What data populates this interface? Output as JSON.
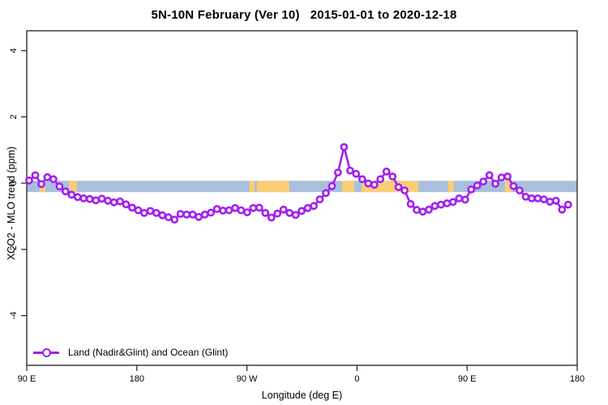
{
  "chart_data": {
    "type": "line",
    "title": "5N-10N February (Ver 10)   2015-01-01 to 2020-12-18",
    "xlabel": "Longitude (deg E)",
    "ylabel": "XCO2 - MLO trend (ppm)",
    "xlim": [
      90,
      540
    ],
    "ylim": [
      -5.5,
      4.6
    ],
    "grid": false,
    "x_ticks": [
      {
        "value": 90,
        "label": "90 E"
      },
      {
        "value": 180,
        "label": "180"
      },
      {
        "value": 270,
        "label": "90 W"
      },
      {
        "value": 360,
        "label": "0"
      },
      {
        "value": 450,
        "label": "90 E"
      },
      {
        "value": 540,
        "label": "180"
      }
    ],
    "y_ticks": [
      {
        "value": -4,
        "label": "-4"
      },
      {
        "value": -2,
        "label": "-2"
      },
      {
        "value": 0,
        "label": "0"
      },
      {
        "value": 2,
        "label": "2"
      },
      {
        "value": 4,
        "label": "4"
      }
    ],
    "axis_color": "#2f2f2f",
    "text_color": "#000000",
    "legend": {
      "position": "bottom-left",
      "entries": [
        {
          "label": "Land (Nadir&Glint) and Ocean (Glint)",
          "color": "#a020f0",
          "marker": "open-circle"
        }
      ]
    },
    "series": [
      {
        "name": "Land (Nadir&Glint) and Ocean (Glint)",
        "color": "#a020f0",
        "marker": "open-circle",
        "marker_fill": "#ffffff",
        "x_start": 92,
        "x_step": 4.95,
        "values": [
          0.08,
          0.24,
          -0.03,
          0.18,
          0.12,
          -0.1,
          -0.25,
          -0.35,
          -0.42,
          -0.46,
          -0.48,
          -0.52,
          -0.47,
          -0.53,
          -0.58,
          -0.55,
          -0.64,
          -0.74,
          -0.82,
          -0.9,
          -0.84,
          -0.9,
          -0.97,
          -1.03,
          -1.1,
          -0.93,
          -0.95,
          -0.95,
          -1.02,
          -0.95,
          -0.89,
          -0.78,
          -0.83,
          -0.82,
          -0.75,
          -0.82,
          -0.88,
          -0.75,
          -0.74,
          -0.9,
          -1.04,
          -0.92,
          -0.8,
          -0.9,
          -0.96,
          -0.84,
          -0.75,
          -0.69,
          -0.49,
          -0.3,
          -0.09,
          0.32,
          1.09,
          0.38,
          0.28,
          0.12,
          -0.01,
          -0.05,
          0.12,
          0.35,
          0.2,
          -0.12,
          -0.22,
          -0.63,
          -0.81,
          -0.86,
          -0.8,
          -0.69,
          -0.65,
          -0.61,
          -0.57,
          -0.46,
          -0.5,
          -0.19,
          -0.07,
          0.05,
          0.24,
          -0.02,
          0.17,
          0.2,
          -0.09,
          -0.22,
          -0.41,
          -0.46,
          -0.46,
          -0.49,
          -0.56,
          -0.53,
          -0.8,
          -0.65
        ]
      }
    ],
    "surface_band": {
      "description": "ocean/land strip drawn along the 0 ppm line",
      "ocean_color": "#a9bfdc",
      "land_color": "#f9cd76",
      "y_top": 0.07,
      "y_bottom": -0.27,
      "land_segments_lon": [
        [
          100.5,
          105.2
        ],
        [
          124.5,
          131.0
        ],
        [
          272.0,
          276.2
        ],
        [
          278.2,
          304.7
        ],
        [
          347.8,
          357.7
        ],
        [
          363.7,
          410.0
        ],
        [
          434.5,
          439.0
        ],
        [
          481.0,
          487.0
        ]
      ]
    }
  }
}
